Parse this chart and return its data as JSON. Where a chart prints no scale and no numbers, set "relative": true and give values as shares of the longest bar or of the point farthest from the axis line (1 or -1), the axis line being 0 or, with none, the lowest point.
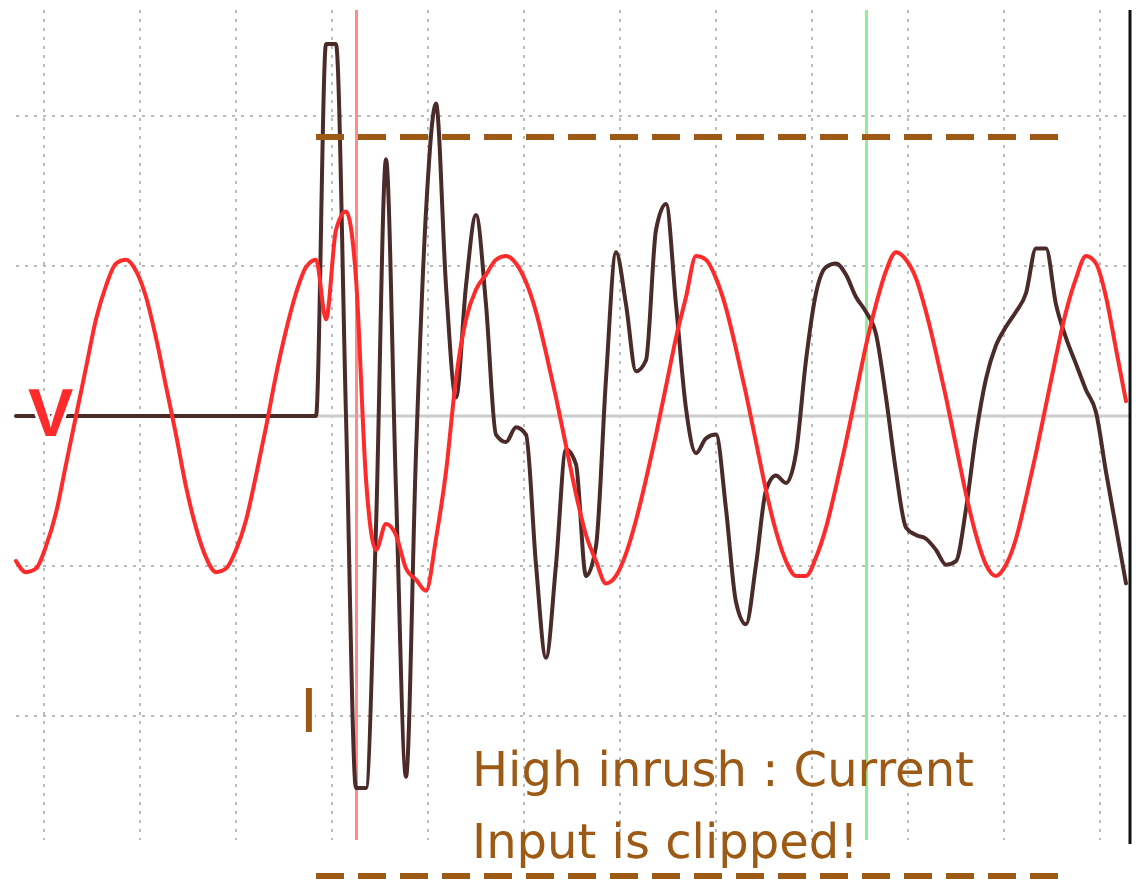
{
  "chart_data": {
    "type": "line",
    "relative": true,
    "grid": true,
    "legend": false,
    "marker": "none",
    "line_style": "solid",
    "categories": [
      null,
      null,
      null,
      null,
      null,
      null,
      null,
      null,
      null,
      null,
      null,
      null,
      null,
      null,
      null,
      null,
      null,
      null,
      null,
      null,
      null,
      null,
      null,
      null,
      null,
      null,
      null,
      null,
      null,
      null,
      null,
      null,
      null,
      null,
      null,
      null,
      null,
      null,
      null,
      null,
      null,
      null,
      null,
      null,
      null,
      null,
      null,
      null,
      null,
      null,
      null,
      null,
      null,
      null,
      null,
      null,
      null,
      null,
      null,
      null,
      null,
      null,
      null,
      null,
      null,
      null,
      null,
      null,
      null,
      null,
      null,
      null,
      null,
      null,
      null,
      null,
      null,
      null,
      null,
      null,
      null,
      null,
      null,
      null,
      null,
      null,
      null,
      null,
      null,
      null,
      null,
      null,
      null,
      null,
      null,
      null,
      null,
      null,
      null,
      null,
      null,
      null,
      null,
      null,
      null,
      null,
      null,
      null,
      null,
      null,
      null,
      null
    ],
    "series": [
      {
        "name": "V",
        "color": "#ff2a2a",
        "values": [
          -0.39,
          -0.42,
          -0.41,
          -0.35,
          -0.26,
          -0.13,
          0,
          0.13,
          0.26,
          0.35,
          0.41,
          0.42,
          0.39,
          0.32,
          0.21,
          0.08,
          -0.05,
          -0.19,
          -0.3,
          -0.38,
          -0.42,
          -0.41,
          -0.36,
          -0.28,
          -0.16,
          -0.03,
          0.11,
          0.23,
          0.33,
          0.4,
          0.42,
          0.26,
          0.5,
          0.55,
          0.37,
          -0.17,
          -0.36,
          -0.29,
          -0.32,
          -0.41,
          -0.44,
          -0.47,
          -0.33,
          -0.15,
          0.1,
          0.26,
          0.34,
          0.38,
          0.42,
          0.43,
          0.41,
          0.36,
          0.28,
          0.17,
          0.05,
          -0.08,
          -0.21,
          -0.32,
          -0.39,
          -0.45,
          -0.43,
          -0.37,
          -0.28,
          -0.17,
          -0.05,
          0.08,
          0.21,
          0.32,
          0.43,
          0.42,
          0.37,
          0.29,
          0.18,
          0.06,
          -0.07,
          -0.2,
          -0.31,
          -0.39,
          -0.43,
          -0.43,
          -0.38,
          -0.3,
          -0.19,
          -0.07,
          0.06,
          0.19,
          0.3,
          0.39,
          0.44,
          0.42,
          0.37,
          0.28,
          0.17,
          0.05,
          -0.08,
          -0.21,
          -0.32,
          -0.4,
          -0.43,
          -0.4,
          -0.33,
          -0.22,
          -0.1,
          0.03,
          0.16,
          0.28,
          0.37,
          0.43,
          0.41,
          0.32,
          0.18,
          0.04
        ]
      },
      {
        "name": "I",
        "color": "#4b2b29",
        "values": [
          0,
          0,
          0,
          0,
          0,
          0,
          0,
          0,
          0,
          0,
          0,
          0,
          0,
          0,
          0,
          0,
          0,
          0,
          0,
          0,
          0,
          0,
          0,
          0,
          0,
          0,
          0,
          0,
          0,
          0,
          0,
          1,
          1,
          0,
          -1,
          -1,
          -0.3,
          0.69,
          -0.2,
          -0.97,
          -0.1,
          0.55,
          0.84,
          0.35,
          0.05,
          0.35,
          0.54,
          0.3,
          -0.05,
          -0.07,
          -0.03,
          -0.05,
          -0.4,
          -0.65,
          -0.4,
          -0.09,
          -0.13,
          -0.43,
          -0.35,
          0.1,
          0.44,
          0.3,
          0.12,
          0.15,
          0.5,
          0.57,
          0.3,
          0.02,
          -0.1,
          -0.06,
          -0.05,
          -0.25,
          -0.5,
          -0.56,
          -0.4,
          -0.2,
          -0.16,
          -0.18,
          -0.1,
          0.15,
          0.33,
          0.4,
          0.41,
          0.38,
          0.32,
          0.28,
          0.22,
          0.05,
          -0.15,
          -0.3,
          -0.32,
          -0.33,
          -0.36,
          -0.4,
          -0.39,
          -0.25,
          -0.05,
          0.1,
          0.19,
          0.24,
          0.28,
          0.33,
          0.45,
          0.45,
          0.3,
          0.21,
          0.14,
          0.07,
          0.01,
          -0.15,
          -0.3,
          -0.45
        ]
      }
    ],
    "ref_lines": [
      {
        "axis": "y",
        "value": 0.75,
        "color": "#9c5a14",
        "line_style": "dashed"
      }
    ],
    "annotations": [
      "High inrush : Current Input is clipped!"
    ]
  }
}
